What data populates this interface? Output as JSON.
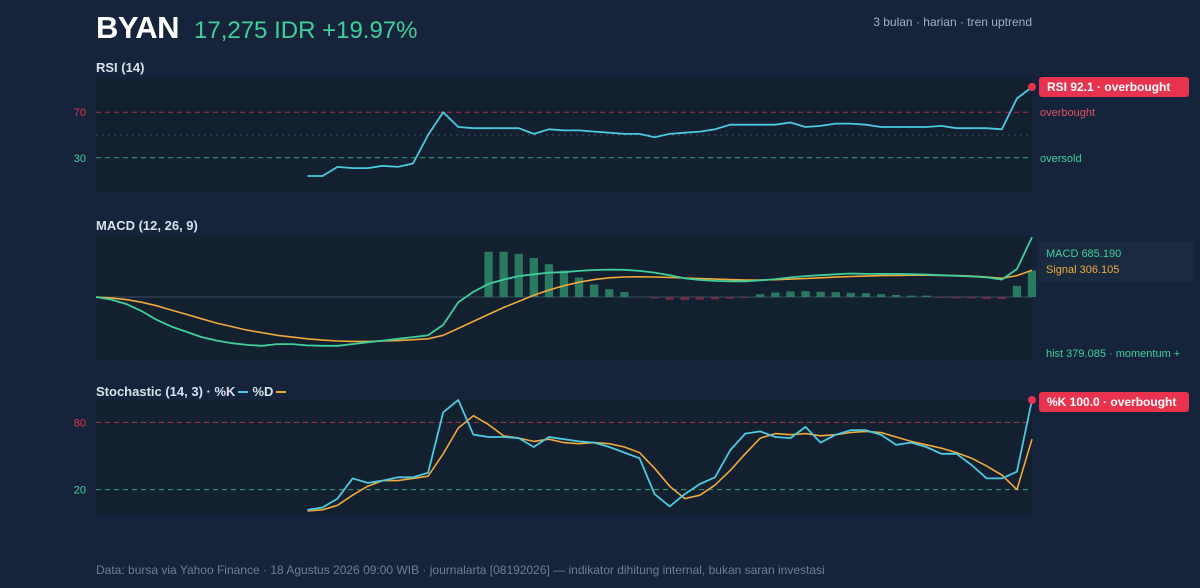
{
  "header": {
    "ticker": "BYAN",
    "price": "17,275 IDR +19.97%",
    "meta": "3 bulan · harian · tren uptrend"
  },
  "colors": {
    "background": "#15243a",
    "panel": "#12202f",
    "rsi_line": "#4cc9e0",
    "macd_line": "#3ecf9a",
    "signal_line": "#f0a93a",
    "k_line": "#4cc9e0",
    "d_line": "#f0a93a",
    "overbought": "#e8334f",
    "oversold": "#3ecf9a",
    "hist_pos": "#2e8a68",
    "hist_neg": "#8a2e45"
  },
  "rsi": {
    "title": "RSI (14)",
    "badge": "RSI 92.1 · overbought",
    "overbought_label": "overbought",
    "oversold_label": "oversold",
    "tick_70": "70",
    "tick_30": "30"
  },
  "macd": {
    "title": "MACD (12, 26, 9)",
    "macd_value": "MACD 685.190",
    "signal_value": "Signal 306.105",
    "hist_label": "hist 379.085 · momentum +"
  },
  "stoch": {
    "title": "Stochastic (14, 3) · %K",
    "d_label": "%D",
    "badge": "%K 100.0 · overbought",
    "tick_80": "80",
    "tick_20": "20"
  },
  "footer": "Data: bursa via Yahoo Finance · 18 Agustus 2026 09:00 WIB · journalarta [08192026] — indikator dihitung internal, bukan saran investasi",
  "chart_data": [
    {
      "type": "line",
      "title": "RSI (14)",
      "x": [
        0,
        1,
        2,
        3,
        4,
        5,
        6,
        7,
        8,
        9,
        10,
        11,
        12,
        13,
        14,
        15,
        16,
        17,
        18,
        19,
        20,
        21,
        22,
        23,
        24,
        25,
        26,
        27,
        28,
        29,
        30,
        31,
        32,
        33,
        34,
        35,
        36,
        37,
        38,
        39,
        40,
        41,
        42,
        43,
        44,
        45,
        46,
        47,
        48,
        49,
        50,
        51,
        52,
        53,
        54,
        55,
        56,
        57,
        58,
        59,
        60,
        61,
        62
      ],
      "ylim": [
        0,
        100
      ],
      "reference_lines": [
        70,
        30,
        50
      ],
      "series": [
        {
          "values": [
            null,
            null,
            null,
            null,
            null,
            null,
            null,
            null,
            null,
            null,
            null,
            null,
            null,
            null,
            14,
            14,
            22,
            21,
            21,
            23,
            22,
            25,
            50,
            70,
            57,
            56,
            56,
            56,
            56,
            51,
            55,
            54,
            54,
            53,
            52,
            51,
            51,
            48,
            51,
            52,
            53,
            55,
            59,
            59,
            59,
            59,
            61,
            57,
            58,
            60,
            60,
            59,
            57,
            57,
            57,
            57,
            58,
            56,
            56,
            56,
            55,
            82,
            92.1
          ]
        }
      ]
    },
    {
      "type": "line",
      "title": "MACD (12, 26, 9)",
      "x": [
        0,
        1,
        2,
        3,
        4,
        5,
        6,
        7,
        8,
        9,
        10,
        11,
        12,
        13,
        14,
        15,
        16,
        17,
        18,
        19,
        20,
        21,
        22,
        23,
        24,
        25,
        26,
        27,
        28,
        29,
        30,
        31,
        32,
        33,
        34,
        35,
        36,
        37,
        38,
        39,
        40,
        41,
        42,
        43,
        44,
        45,
        46,
        47,
        48,
        49,
        50,
        51,
        52,
        53,
        54,
        55,
        56,
        57,
        58,
        59,
        60,
        61,
        62
      ],
      "ylim": [
        -700,
        700
      ],
      "series": [
        {
          "name": "MACD",
          "values": [
            0,
            -30,
            -80,
            -160,
            -260,
            -340,
            -400,
            -460,
            -500,
            -530,
            -550,
            -560,
            -540,
            -540,
            -555,
            -560,
            -560,
            -540,
            -520,
            -500,
            -480,
            -460,
            -440,
            -320,
            -60,
            60,
            150,
            200,
            240,
            260,
            280,
            285,
            300,
            310,
            315,
            312,
            300,
            280,
            250,
            215,
            195,
            185,
            180,
            180,
            190,
            205,
            225,
            240,
            250,
            260,
            270,
            265,
            265,
            265,
            262,
            258,
            250,
            242,
            235,
            225,
            200,
            320,
            685.19
          ]
        },
        {
          "name": "Signal",
          "values": [
            0,
            -10,
            -30,
            -60,
            -100,
            -150,
            -200,
            -250,
            -300,
            -340,
            -380,
            -410,
            -440,
            -460,
            -480,
            -495,
            -505,
            -510,
            -510,
            -505,
            -500,
            -490,
            -480,
            -440,
            -360,
            -280,
            -200,
            -120,
            -50,
            20,
            80,
            130,
            170,
            200,
            220,
            230,
            232,
            230,
            225,
            218,
            212,
            205,
            200,
            195,
            195,
            198,
            205,
            212,
            220,
            228,
            235,
            240,
            245,
            248,
            250,
            250,
            248,
            245,
            240,
            230,
            215,
            245,
            306.105
          ]
        },
        {
          "name": "hist",
          "values": [
            null,
            null,
            null,
            null,
            null,
            null,
            null,
            null,
            null,
            null,
            null,
            null,
            null,
            null,
            null,
            null,
            null,
            null,
            null,
            null,
            null,
            null,
            null,
            null,
            null,
            null,
            650,
            650,
            620,
            560,
            470,
            380,
            280,
            180,
            110,
            70,
            null,
            -20,
            -40,
            -45,
            -40,
            -35,
            -25,
            -15,
            40,
            65,
            80,
            85,
            75,
            70,
            60,
            55,
            40,
            30,
            20,
            20,
            -10,
            -20,
            -20,
            -30,
            -30,
            160,
            379.085
          ]
        }
      ]
    },
    {
      "type": "line",
      "title": "Stochastic (14, 3)",
      "x": [
        0,
        1,
        2,
        3,
        4,
        5,
        6,
        7,
        8,
        9,
        10,
        11,
        12,
        13,
        14,
        15,
        16,
        17,
        18,
        19,
        20,
        21,
        22,
        23,
        24,
        25,
        26,
        27,
        28,
        29,
        30,
        31,
        32,
        33,
        34,
        35,
        36,
        37,
        38,
        39,
        40,
        41,
        42,
        43,
        44,
        45,
        46,
        47,
        48,
        49,
        50,
        51,
        52,
        53,
        54,
        55,
        56,
        57,
        58,
        59,
        60,
        61,
        62
      ],
      "ylim": [
        0,
        100
      ],
      "reference_lines": [
        80,
        20
      ],
      "series": [
        {
          "name": "%K",
          "values": [
            null,
            null,
            null,
            null,
            null,
            null,
            null,
            null,
            null,
            null,
            null,
            null,
            null,
            null,
            2,
            4,
            12,
            30,
            26,
            28,
            31,
            31,
            35,
            89,
            100,
            69,
            67,
            67,
            66,
            58,
            67,
            65,
            63,
            62,
            58,
            53,
            48,
            16,
            5,
            16,
            25,
            31,
            55,
            70,
            72,
            67,
            66,
            76,
            62,
            69,
            73,
            73,
            69,
            60,
            62,
            58,
            52,
            52,
            42,
            30,
            30,
            36,
            100
          ]
        },
        {
          "name": "%D",
          "values": [
            null,
            null,
            null,
            null,
            null,
            null,
            null,
            null,
            null,
            null,
            null,
            null,
            null,
            null,
            1,
            2,
            6,
            15,
            23,
            28,
            28,
            30,
            32,
            52,
            75,
            86,
            78,
            68,
            66,
            63,
            65,
            62,
            61,
            62,
            61,
            58,
            53,
            39,
            23,
            12,
            15,
            24,
            37,
            52,
            66,
            70,
            69,
            70,
            68,
            69,
            71,
            72,
            71,
            67,
            63,
            60,
            57,
            53,
            48,
            41,
            33,
            20,
            65
          ]
        }
      ]
    }
  ]
}
